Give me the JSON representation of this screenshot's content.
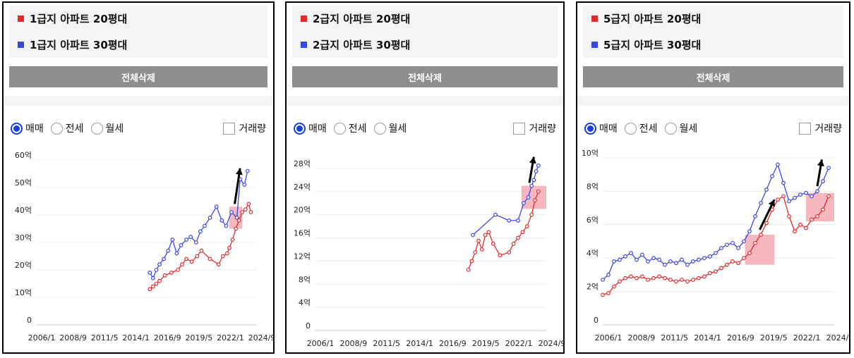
{
  "colors": {
    "series_20": "#e22a2a",
    "series_30": "#3a46e0",
    "highlight": "#f3a0a8",
    "button": "#8e8e8e",
    "selected_radio": "#1740d8"
  },
  "controls": {
    "delete_all": "전체삭제",
    "radios": [
      "매매",
      "전세",
      "월세"
    ],
    "selected_radio": "매매",
    "volume_label": "거래량",
    "volume_checked": false
  },
  "chart_data": [
    {
      "type": "line",
      "legend": [
        "1급지 아파트 20평대",
        "1급지 아파트 30평대"
      ],
      "ytick_labels": [
        "0",
        "10억",
        "20억",
        "30억",
        "40억",
        "50억",
        "60억"
      ],
      "ylim": [
        0,
        60
      ],
      "xtick_labels": [
        "2006/1",
        "2008/9",
        "2011/5",
        "2014/1",
        "2016/9",
        "2019/5",
        "2022/1",
        "2024/9"
      ],
      "xlim": [
        2006.0,
        2026.5
      ],
      "grid": true,
      "series": [
        {
          "name": "1급지 아파트 20평대",
          "color": "series_20",
          "x": [
            2016.6,
            2016.9,
            2017.2,
            2017.5,
            2018.0,
            2018.6,
            2019.2,
            2019.6,
            2020.0,
            2020.5,
            2021.0,
            2021.4,
            2022.2,
            2023.0,
            2023.4,
            2023.8,
            2024.0,
            2024.3,
            2024.6,
            2024.9,
            2025.2,
            2025.5,
            2025.8,
            2026.0
          ],
          "y": [
            13,
            14,
            15,
            16,
            18,
            19,
            20,
            22,
            24,
            23,
            25,
            27,
            24,
            22,
            25,
            26,
            28,
            31,
            35,
            38,
            41,
            42,
            44,
            41
          ]
        },
        {
          "name": "1급지 아파트 30평대",
          "color": "series_30",
          "x": [
            2016.6,
            2016.9,
            2017.2,
            2017.5,
            2017.9,
            2018.3,
            2018.7,
            2019.1,
            2019.5,
            2020.0,
            2020.4,
            2020.9,
            2021.3,
            2021.7,
            2022.2,
            2022.8,
            2023.3,
            2023.7,
            2024.2,
            2024.7,
            2025.0,
            2025.4,
            2025.7
          ],
          "y": [
            19,
            17,
            20,
            22,
            24,
            27,
            31,
            26,
            29,
            31,
            32,
            30,
            34,
            36,
            39,
            43,
            38,
            36,
            41,
            39,
            53,
            51,
            56
          ]
        }
      ],
      "highlight": {
        "x": [
          2024.0,
          2025.2
        ],
        "y": [
          35,
          43
        ]
      },
      "arrow": {
        "from": [
          2024.5,
          44
        ],
        "to": [
          2025.0,
          57
        ]
      }
    },
    {
      "type": "line",
      "legend": [
        "2급지 아파트 20평대",
        "2급지 아파트 30평대"
      ],
      "ytick_labels": [
        "0",
        "4억",
        "8억",
        "12억",
        "16억",
        "20억",
        "24억",
        "28억"
      ],
      "ylim": [
        0,
        28
      ],
      "xtick_labels": [
        "2006/1",
        "2008/9",
        "2011/5",
        "2014/1",
        "2016/9",
        "2019/5",
        "2022/1",
        "2024/9"
      ],
      "xlim": [
        2006.0,
        2026.5
      ],
      "grid": true,
      "series": [
        {
          "name": "2급지 아파트 20평대",
          "color": "series_20",
          "x": [
            2019.6,
            2019.9,
            2020.2,
            2020.5,
            2020.8,
            2021.1,
            2021.4,
            2021.8,
            2022.4,
            2023.2,
            2023.6,
            2024.0,
            2024.4,
            2024.8,
            2025.2,
            2025.5,
            2025.8
          ],
          "y": [
            10.5,
            12,
            13.5,
            15.5,
            14,
            16.5,
            17,
            15,
            13,
            13.5,
            15,
            16,
            17,
            18,
            20,
            22.5,
            24
          ]
        },
        {
          "name": "2급지 아파트 30평대",
          "color": "series_30",
          "x": [
            2020.0,
            2022.0,
            2023.2,
            2024.0,
            2024.5,
            2024.9,
            2025.2,
            2025.4,
            2025.6,
            2025.8
          ],
          "y": [
            16.5,
            20,
            19,
            19,
            22,
            23,
            25,
            26,
            27.5,
            28.5
          ]
        }
      ],
      "highlight": {
        "x": [
          2024.3,
          2026.5
        ],
        "y": [
          21,
          25
        ]
      },
      "arrow": {
        "from": [
          2025.0,
          25.5
        ],
        "to": [
          2025.4,
          30
        ]
      }
    },
    {
      "type": "line",
      "legend": [
        "5급지 아파트 20평대",
        "5급지 아파트 30평대"
      ],
      "ytick_labels": [
        "0",
        "2억",
        "4억",
        "6억",
        "8억",
        "10억"
      ],
      "ylim": [
        0,
        10
      ],
      "xtick_labels": [
        "2006/1",
        "2008/9",
        "2011/5",
        "2014/1",
        "2016/9",
        "2019/5",
        "2022/1",
        "2024/9"
      ],
      "xlim": [
        2006.0,
        2026.5
      ],
      "grid": true,
      "series": [
        {
          "name": "5급지 아파트 20평대",
          "color": "series_20",
          "x": [
            2006.0,
            2006.5,
            2007.0,
            2007.5,
            2008.0,
            2008.5,
            2009.0,
            2009.5,
            2010.0,
            2010.5,
            2011.0,
            2011.5,
            2012.0,
            2012.5,
            2013.0,
            2013.5,
            2014.0,
            2014.5,
            2015.0,
            2015.5,
            2016.0,
            2016.5,
            2017.0,
            2017.5,
            2018.0,
            2018.5,
            2019.0,
            2019.5,
            2020.0,
            2020.5,
            2021.0,
            2021.5,
            2022.0,
            2022.5,
            2023.0,
            2023.5,
            2024.0,
            2024.5,
            2025.0,
            2025.5,
            2026.0
          ],
          "y": [
            1.8,
            1.9,
            2.3,
            2.6,
            2.8,
            2.9,
            2.8,
            2.9,
            2.7,
            2.8,
            2.9,
            2.8,
            2.7,
            2.6,
            2.7,
            2.6,
            2.7,
            2.8,
            2.9,
            3.1,
            3.2,
            3.4,
            3.6,
            3.8,
            3.7,
            4.0,
            4.3,
            4.9,
            5.4,
            6.1,
            6.9,
            7.5,
            7.7,
            6.5,
            5.6,
            6.0,
            5.8,
            6.3,
            6.5,
            6.9,
            7.7
          ]
        },
        {
          "name": "5급지 아파트 30평대",
          "color": "series_30",
          "x": [
            2006.0,
            2006.5,
            2007.0,
            2007.5,
            2008.0,
            2008.5,
            2009.0,
            2009.5,
            2010.0,
            2010.5,
            2011.0,
            2011.5,
            2012.0,
            2012.5,
            2013.0,
            2013.5,
            2014.0,
            2014.5,
            2015.0,
            2015.5,
            2016.0,
            2016.5,
            2017.0,
            2017.5,
            2018.0,
            2018.5,
            2019.0,
            2019.5,
            2020.0,
            2020.5,
            2021.0,
            2021.5,
            2022.0,
            2022.5,
            2023.0,
            2023.5,
            2024.0,
            2024.5,
            2025.0,
            2025.5,
            2026.0
          ],
          "y": [
            2.7,
            3.0,
            3.8,
            3.9,
            4.1,
            4.3,
            3.9,
            4.2,
            3.8,
            4.0,
            3.9,
            3.6,
            3.8,
            3.7,
            3.9,
            3.6,
            3.8,
            3.9,
            4.0,
            4.1,
            4.3,
            4.6,
            4.8,
            4.9,
            4.6,
            5.0,
            5.6,
            6.5,
            7.3,
            8.1,
            8.9,
            9.6,
            8.5,
            7.4,
            7.6,
            7.8,
            7.9,
            7.7,
            8.0,
            8.6,
            9.4
          ]
        }
      ],
      "highlight": {
        "x": [
          2018.6,
          2021.2
        ],
        "y": [
          3.6,
          5.4
        ]
      },
      "highlight2": {
        "x": [
          2024.0,
          2026.5
        ],
        "y": [
          6.2,
          7.9
        ]
      },
      "arrow": {
        "from": [
          2019.9,
          5.7
        ],
        "to": [
          2021.2,
          7.5
        ]
      },
      "arrow2": {
        "from": [
          2025.0,
          8.3
        ],
        "to": [
          2025.4,
          9.9
        ]
      }
    }
  ]
}
